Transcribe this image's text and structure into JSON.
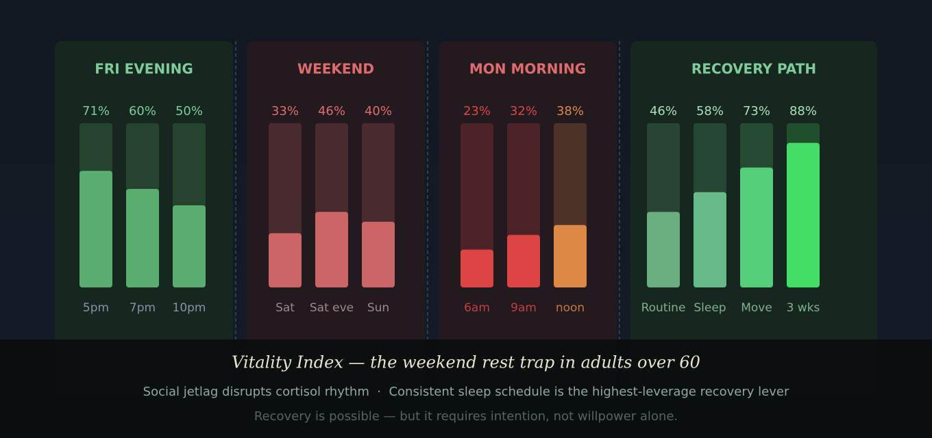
{
  "chart_data": [
    {
      "type": "bar",
      "title": "FRI EVENING",
      "title_color": "#7dcc99",
      "panel_color": "#16271f",
      "label_color": "#7f95a8",
      "value_label_color": "#7dcc99",
      "categories": [
        "5pm",
        "7pm",
        "10pm"
      ],
      "values": [
        71,
        60,
        50
      ],
      "value_labels": [
        "71%",
        "60%",
        "50%"
      ],
      "colors": [
        "#5aad6e",
        "#5aad6e",
        "#5aad6e"
      ],
      "ylim": [
        0,
        100
      ]
    },
    {
      "type": "bar",
      "title": "WEEKEND",
      "title_color": "#e06b6b",
      "panel_color": "#231a20",
      "label_color": "#9a8888",
      "value_label_color": "#e06b6b",
      "categories": [
        "Sat",
        "Sat eve",
        "Sun"
      ],
      "values": [
        33,
        46,
        40
      ],
      "value_labels": [
        "33%",
        "46%",
        "40%"
      ],
      "colors": [
        "#cc6666",
        "#cc6666",
        "#cc6666"
      ],
      "ylim": [
        0,
        100
      ]
    },
    {
      "type": "bar",
      "title": "MON MORNING",
      "title_color": "#e06b6b",
      "panel_color": "#231a20",
      "categories": [
        "6am",
        "9am",
        "noon"
      ],
      "values": [
        23,
        32,
        38
      ],
      "value_labels": [
        "23%",
        "32%",
        "38%"
      ],
      "colors": [
        "#dd4444",
        "#dd4444",
        "#dd8844"
      ],
      "ylim": [
        0,
        100
      ]
    },
    {
      "type": "bar",
      "title": "RECOVERY PATH",
      "title_color": "#7dcc99",
      "panel_color": "#16271f",
      "label_color": "#7fb08a",
      "value_label_color": "#a8e0b8",
      "categories": [
        "Routine",
        "Sleep",
        "Move",
        "3 wks"
      ],
      "values": [
        46,
        58,
        73,
        88
      ],
      "value_labels": [
        "46%",
        "58%",
        "73%",
        "88%"
      ],
      "colors": [
        "#6aae7e",
        "#66bb88",
        "#55cc77",
        "#44dd66"
      ],
      "ylim": [
        0,
        100
      ]
    }
  ],
  "title": "Vitality Index — the weekend rest trap in adults over 60",
  "subtitle": "Social jetlag disrupts cortisol rhythm  ·  Consistent sleep schedule is the highest-leverage recovery lever",
  "footer": "Recovery is possible — but it requires intention, not willpower alone."
}
